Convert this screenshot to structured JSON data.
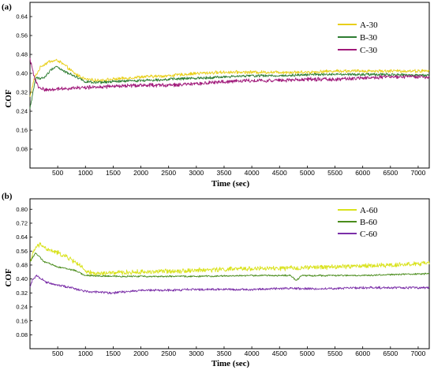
{
  "chart_data": [
    {
      "type": "line",
      "panel_label": "(a)",
      "xlabel": "Time (sec)",
      "ylabel": "COF",
      "xlim": [
        0,
        7200
      ],
      "ylim": [
        0,
        0.7
      ],
      "xticks": [
        "500",
        "1000",
        "1500",
        "2000",
        "2500",
        "3000",
        "3500",
        "4000",
        "4500",
        "5000",
        "5500",
        "6000",
        "6500",
        "7000"
      ],
      "xtick_values": [
        500,
        1000,
        1500,
        2000,
        2500,
        3000,
        3500,
        4000,
        4500,
        5000,
        5500,
        6000,
        6500,
        7000
      ],
      "yticks": [
        "0.08",
        "0.16",
        "0.24",
        "0.32",
        "0.40",
        "0.48",
        "0.56",
        "0.64"
      ],
      "ytick_values": [
        0.08,
        0.16,
        0.24,
        0.32,
        0.4,
        0.48,
        0.56,
        0.64
      ],
      "legend_position": "top-right",
      "series": [
        {
          "name": "A-30",
          "color": "#e8cf1a",
          "noise": 0.006,
          "points": [
            [
              0,
              0.3
            ],
            [
              80,
              0.38
            ],
            [
              200,
              0.43
            ],
            [
              350,
              0.45
            ],
            [
              500,
              0.455
            ],
            [
              650,
              0.43
            ],
            [
              800,
              0.4
            ],
            [
              1000,
              0.375
            ],
            [
              1200,
              0.37
            ],
            [
              1500,
              0.375
            ],
            [
              2000,
              0.385
            ],
            [
              2500,
              0.39
            ],
            [
              3000,
              0.4
            ],
            [
              3500,
              0.405
            ],
            [
              4000,
              0.405
            ],
            [
              4500,
              0.405
            ],
            [
              5000,
              0.405
            ],
            [
              5500,
              0.41
            ],
            [
              6000,
              0.41
            ],
            [
              6500,
              0.41
            ],
            [
              7200,
              0.41
            ]
          ]
        },
        {
          "name": "B-30",
          "color": "#2e7d32",
          "noise": 0.005,
          "points": [
            [
              0,
              0.25
            ],
            [
              100,
              0.38
            ],
            [
              250,
              0.38
            ],
            [
              400,
              0.42
            ],
            [
              480,
              0.43
            ],
            [
              600,
              0.41
            ],
            [
              800,
              0.39
            ],
            [
              1000,
              0.365
            ],
            [
              1200,
              0.36
            ],
            [
              1500,
              0.365
            ],
            [
              2000,
              0.37
            ],
            [
              2500,
              0.375
            ],
            [
              3000,
              0.38
            ],
            [
              3500,
              0.385
            ],
            [
              4000,
              0.39
            ],
            [
              4500,
              0.39
            ],
            [
              5000,
              0.395
            ],
            [
              5500,
              0.395
            ],
            [
              6000,
              0.395
            ],
            [
              6500,
              0.395
            ],
            [
              7200,
              0.39
            ]
          ]
        },
        {
          "name": "C-30",
          "color": "#a0197a",
          "noise": 0.007,
          "points": [
            [
              0,
              0.46
            ],
            [
              60,
              0.4
            ],
            [
              150,
              0.34
            ],
            [
              300,
              0.33
            ],
            [
              500,
              0.335
            ],
            [
              1000,
              0.34
            ],
            [
              1500,
              0.345
            ],
            [
              2000,
              0.35
            ],
            [
              2500,
              0.35
            ],
            [
              3000,
              0.355
            ],
            [
              3500,
              0.365
            ],
            [
              4000,
              0.37
            ],
            [
              4500,
              0.37
            ],
            [
              5000,
              0.375
            ],
            [
              5500,
              0.375
            ],
            [
              6000,
              0.38
            ],
            [
              6500,
              0.385
            ],
            [
              7200,
              0.385
            ]
          ]
        }
      ]
    },
    {
      "type": "line",
      "panel_label": "(b)",
      "xlabel": "Time (sec)",
      "ylabel": "COF",
      "xlim": [
        0,
        7200
      ],
      "ylim": [
        0,
        0.86
      ],
      "xticks": [
        "500",
        "1000",
        "1500",
        "2000",
        "2500",
        "3000",
        "3500",
        "4000",
        "4500",
        "5000",
        "5500",
        "6000",
        "6500",
        "7000"
      ],
      "xtick_values": [
        500,
        1000,
        1500,
        2000,
        2500,
        3000,
        3500,
        4000,
        4500,
        5000,
        5500,
        6000,
        6500,
        7000
      ],
      "yticks": [
        "0.08",
        "0.16",
        "0.24",
        "0.32",
        "0.40",
        "0.48",
        "0.56",
        "0.64",
        "0.72",
        "0.80"
      ],
      "ytick_values": [
        0.08,
        0.16,
        0.24,
        0.32,
        0.4,
        0.48,
        0.56,
        0.64,
        0.72,
        0.8
      ],
      "legend_position": "top-right",
      "series": [
        {
          "name": "A-60",
          "color": "#d9e21c",
          "noise": 0.012,
          "points": [
            [
              0,
              0.5
            ],
            [
              100,
              0.58
            ],
            [
              200,
              0.6
            ],
            [
              300,
              0.57
            ],
            [
              500,
              0.55
            ],
            [
              700,
              0.52
            ],
            [
              900,
              0.48
            ],
            [
              1000,
              0.44
            ],
            [
              1200,
              0.43
            ],
            [
              1500,
              0.435
            ],
            [
              2000,
              0.44
            ],
            [
              2500,
              0.445
            ],
            [
              3000,
              0.45
            ],
            [
              3500,
              0.455
            ],
            [
              4000,
              0.46
            ],
            [
              4500,
              0.46
            ],
            [
              5000,
              0.465
            ],
            [
              5500,
              0.47
            ],
            [
              6000,
              0.475
            ],
            [
              6500,
              0.48
            ],
            [
              7200,
              0.49
            ]
          ]
        },
        {
          "name": "B-60",
          "color": "#4a8c1c",
          "noise": 0.004,
          "points": [
            [
              0,
              0.5
            ],
            [
              100,
              0.55
            ],
            [
              250,
              0.5
            ],
            [
              500,
              0.47
            ],
            [
              800,
              0.45
            ],
            [
              1000,
              0.42
            ],
            [
              1500,
              0.415
            ],
            [
              2000,
              0.415
            ],
            [
              3000,
              0.415
            ],
            [
              4000,
              0.42
            ],
            [
              4700,
              0.42
            ],
            [
              4800,
              0.39
            ],
            [
              4900,
              0.42
            ],
            [
              5500,
              0.42
            ],
            [
              6000,
              0.42
            ],
            [
              6500,
              0.425
            ],
            [
              7200,
              0.43
            ]
          ]
        },
        {
          "name": "C-60",
          "color": "#7b2fa8",
          "noise": 0.006,
          "points": [
            [
              0,
              0.35
            ],
            [
              50,
              0.4
            ],
            [
              120,
              0.42
            ],
            [
              300,
              0.38
            ],
            [
              600,
              0.36
            ],
            [
              1000,
              0.33
            ],
            [
              1500,
              0.32
            ],
            [
              2000,
              0.335
            ],
            [
              2500,
              0.335
            ],
            [
              3000,
              0.34
            ],
            [
              3500,
              0.34
            ],
            [
              4000,
              0.34
            ],
            [
              4500,
              0.345
            ],
            [
              5000,
              0.345
            ],
            [
              5500,
              0.345
            ],
            [
              6000,
              0.35
            ],
            [
              6500,
              0.35
            ],
            [
              7200,
              0.35
            ]
          ]
        }
      ]
    }
  ]
}
